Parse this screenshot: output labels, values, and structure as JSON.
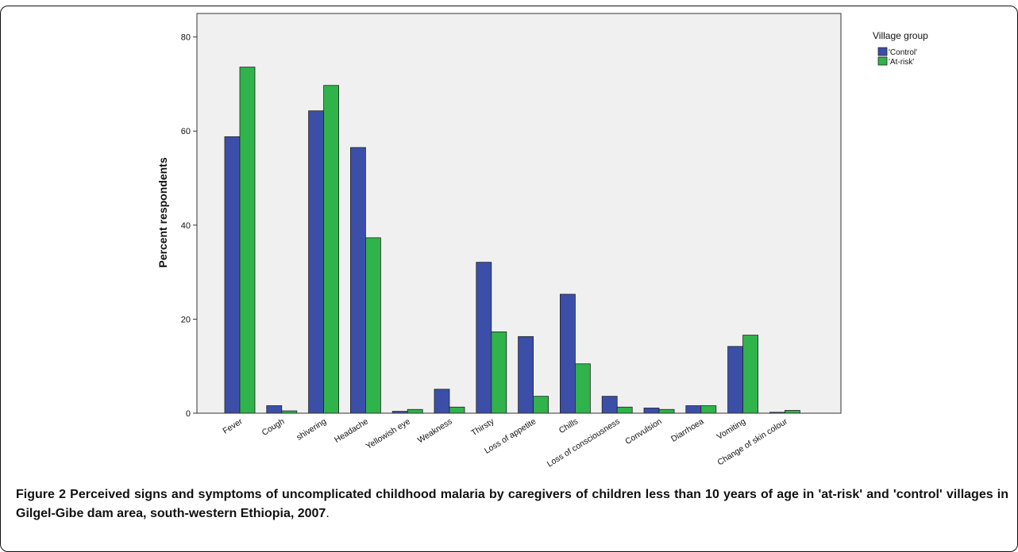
{
  "figure": {
    "label": "Figure 2",
    "caption": "Perceived signs and symptoms of uncomplicated childhood malaria by caregivers of children less than 10 years of age in 'at-risk' and 'control' villages in Gilgel-Gibe dam area, south-western Ethiopia, 2007",
    "caption_end": "."
  },
  "chart_data": {
    "type": "bar",
    "title": "",
    "xlabel": "",
    "ylabel": "Percent respondents",
    "ylim": [
      0,
      85
    ],
    "yticks": [
      "0",
      "20",
      "40",
      "60",
      "80"
    ],
    "grid": false,
    "legend_title": "Village group",
    "legend_placement": "right",
    "categories": [
      "Fever",
      "Cough",
      "shivering",
      "Headache",
      "Yellowish eye",
      "Weakness",
      "Thirsty",
      "Loss of appetite",
      "Chills",
      "Loss of consciousness",
      "Convulsion",
      "Diarrhoea",
      "Vomiting",
      "Change of skin colour"
    ],
    "series": [
      {
        "name": "'Control'",
        "color": "#3b4fa8",
        "values": [
          58.8,
          1.6,
          64.3,
          56.5,
          0.4,
          5.1,
          32.1,
          16.3,
          25.3,
          3.6,
          1.1,
          1.6,
          14.2,
          0.2
        ]
      },
      {
        "name": "'At-risk'",
        "color": "#2fb34a",
        "values": [
          73.6,
          0.5,
          69.7,
          37.3,
          0.8,
          1.3,
          17.3,
          3.6,
          10.5,
          1.3,
          0.8,
          1.6,
          16.6,
          0.6
        ]
      }
    ]
  }
}
